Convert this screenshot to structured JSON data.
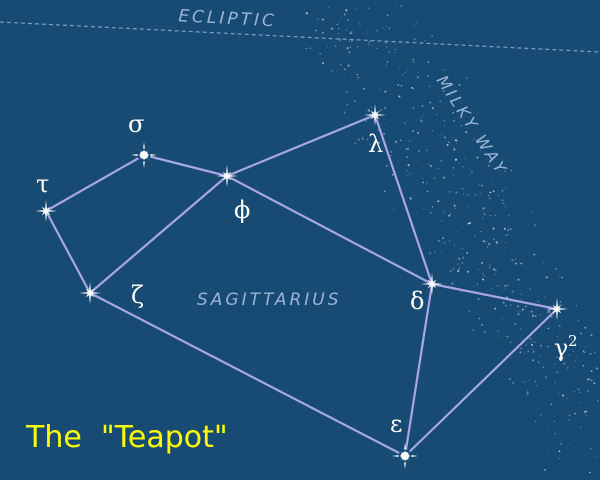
{
  "title": "The  \"Teapot\"",
  "labels": {
    "ecliptic": "ECLIPTIC",
    "milky_way": "MILKY WAY",
    "constellation": "SAGITTARIUS"
  },
  "stars": [
    {
      "id": "tau",
      "label": "τ",
      "kind": "star"
    },
    {
      "id": "sigma",
      "label": "σ",
      "kind": "double-star"
    },
    {
      "id": "phi",
      "label": "ϕ",
      "kind": "star"
    },
    {
      "id": "lambda",
      "label": "λ",
      "kind": "star"
    },
    {
      "id": "zeta",
      "label": "ζ",
      "kind": "star"
    },
    {
      "id": "delta",
      "label": "δ",
      "kind": "star"
    },
    {
      "id": "gamma2",
      "label": "γ",
      "superscript": "2",
      "kind": "star"
    },
    {
      "id": "epsilon",
      "label": "ε",
      "kind": "double-star"
    }
  ],
  "connections": [
    [
      "tau",
      "sigma"
    ],
    [
      "sigma",
      "phi"
    ],
    [
      "phi",
      "lambda"
    ],
    [
      "lambda",
      "delta"
    ],
    [
      "phi",
      "delta"
    ],
    [
      "phi",
      "zeta"
    ],
    [
      "tau",
      "zeta"
    ],
    [
      "zeta",
      "epsilon"
    ],
    [
      "epsilon",
      "delta"
    ],
    [
      "delta",
      "gamma2"
    ],
    [
      "gamma2",
      "epsilon"
    ]
  ],
  "colors": {
    "background": "#174b73",
    "line": "#a9a6e6",
    "star": "#ffffff",
    "label_text": "#9ab4d4",
    "title": "#ffff00"
  }
}
